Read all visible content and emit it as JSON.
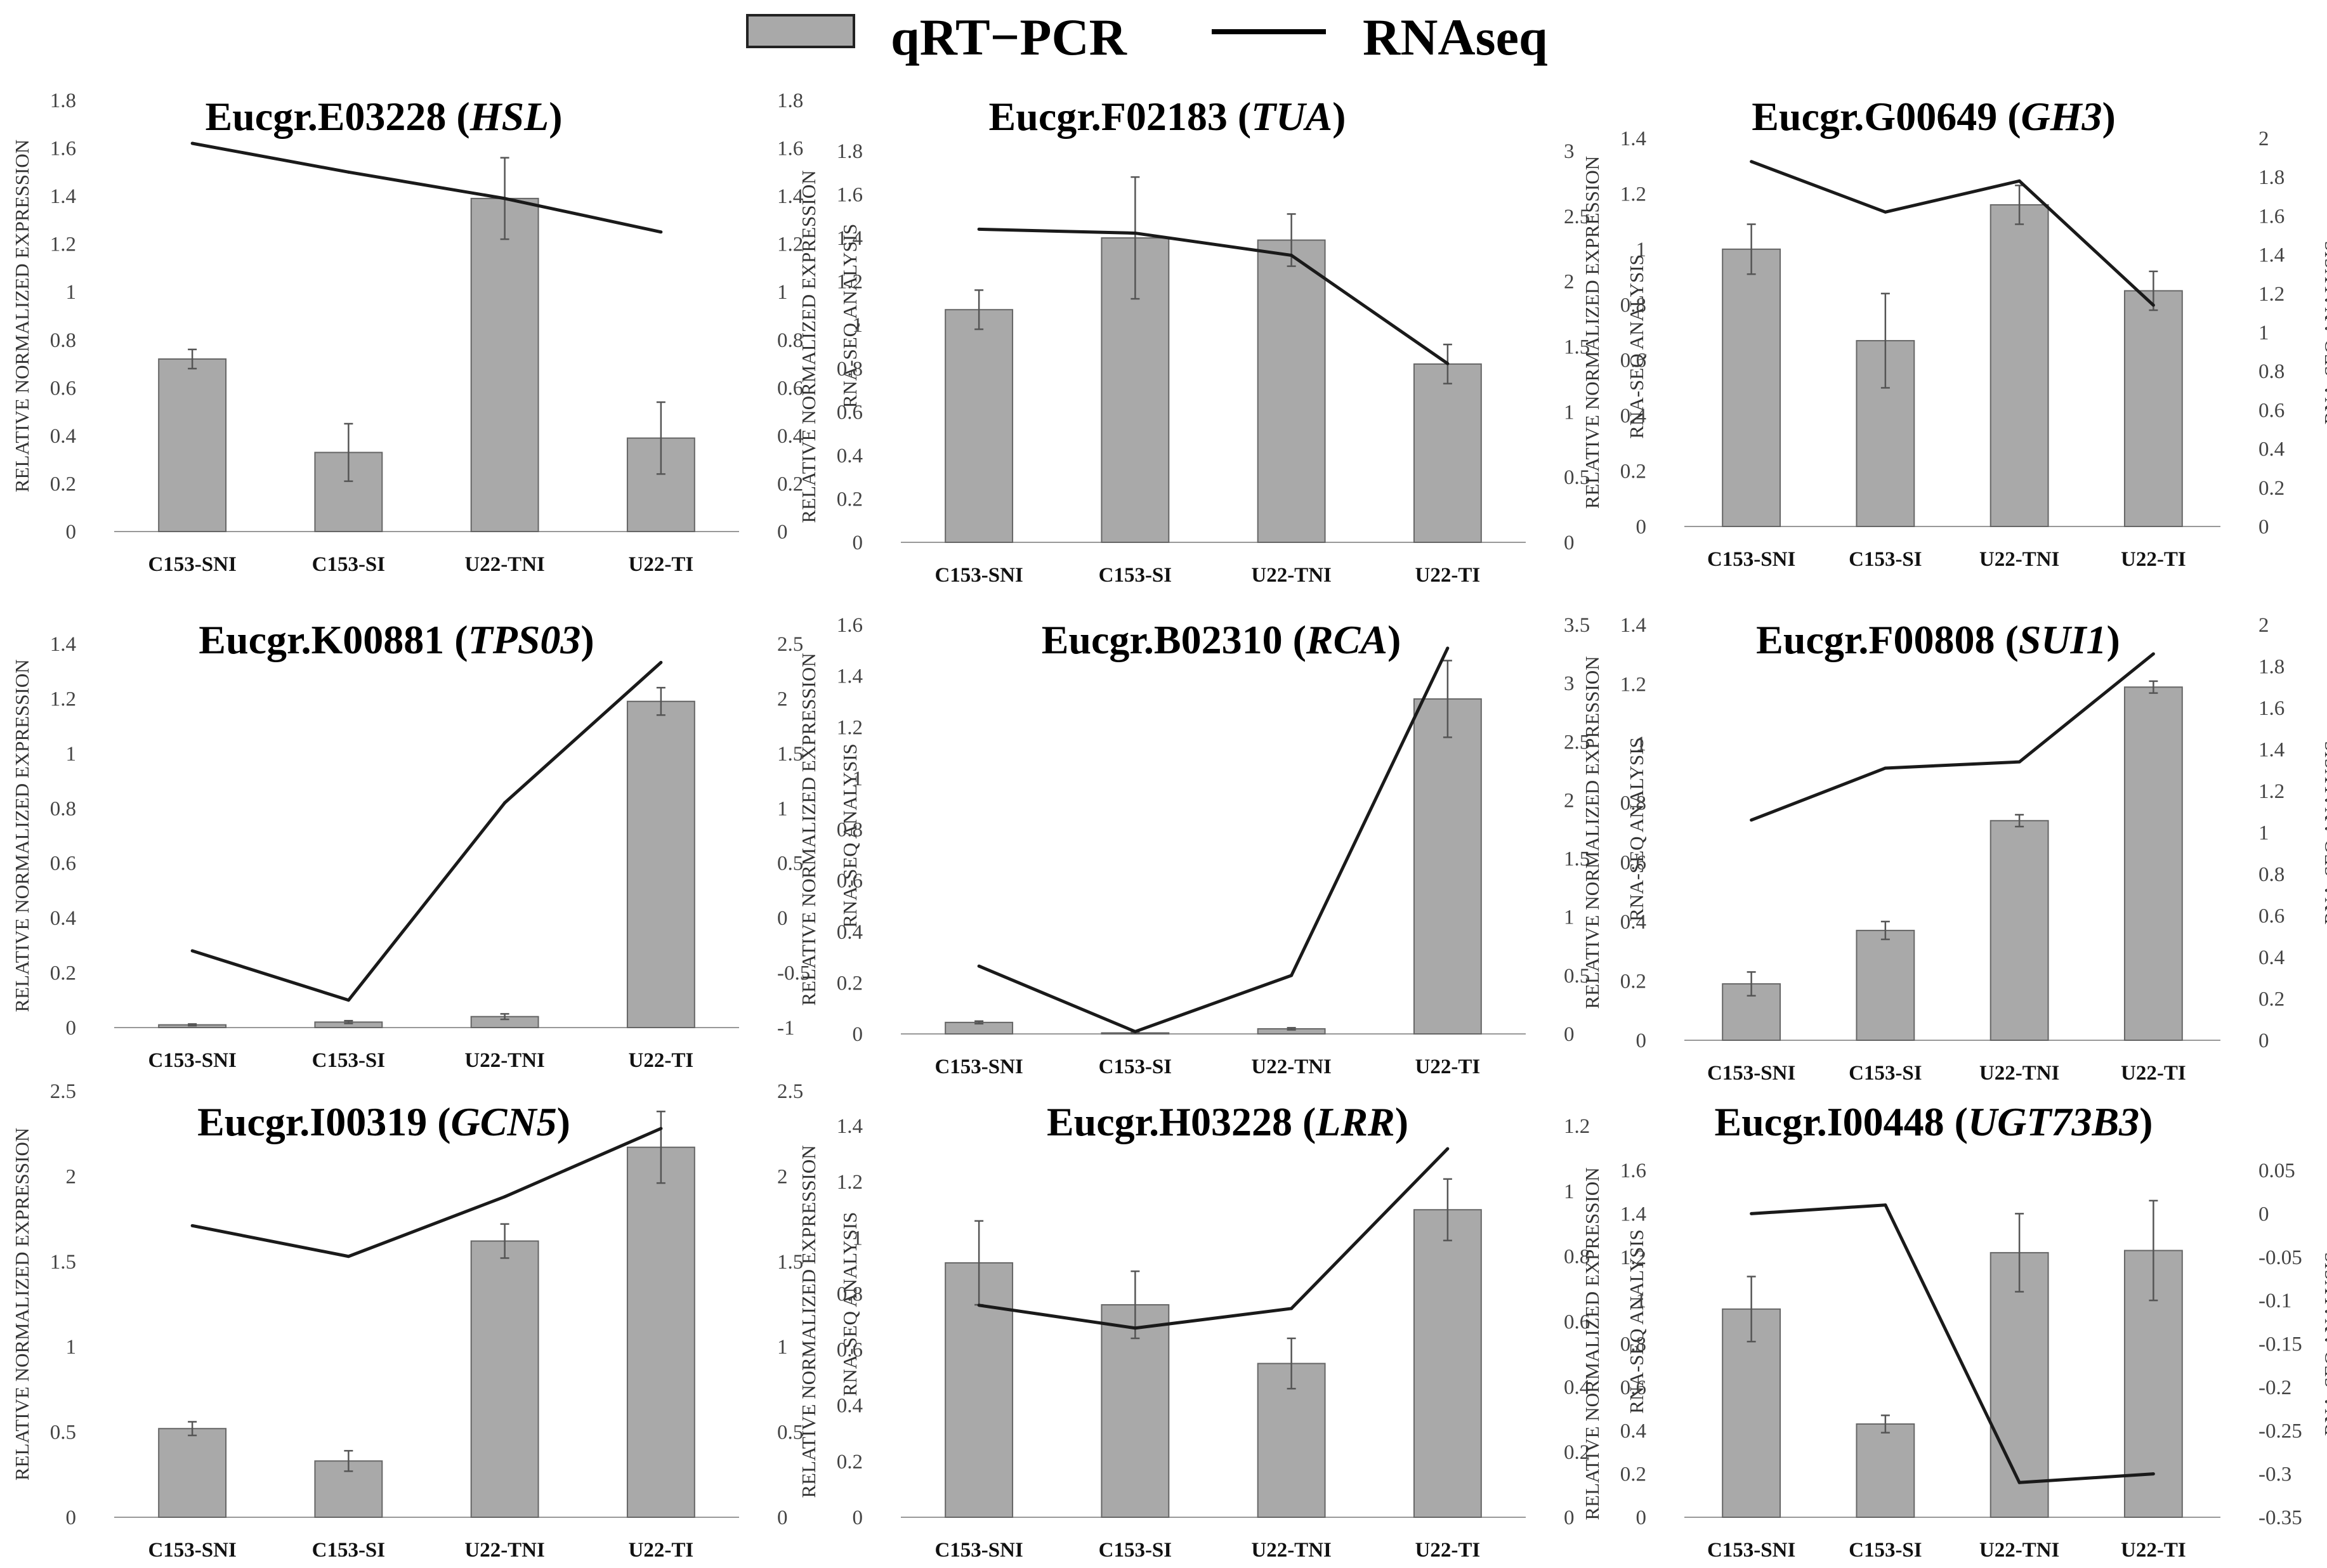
{
  "legend": {
    "bar_label": "qRT−PCR",
    "line_label": "RNAseq"
  },
  "colors": {
    "bar_fill": "#a9a9a9",
    "line": "#1a1a1a"
  },
  "chart_data": [
    {
      "type": "bar",
      "id": "hsl",
      "title_prefix": "Eucgr.E03228 (",
      "title_gene": "HSL",
      "title_suffix": ")",
      "categories": [
        "C153-SNI",
        "C153-SI",
        "U22-TNI",
        "U22-TI"
      ],
      "ylabel": "RELATIVE NORMALIZED EXPRESSION",
      "y2label": "RNA-SEQ ANALYSIS",
      "ylim": [
        0,
        1.8
      ],
      "yticks": [
        "0",
        "0.2",
        "0.4",
        "0.6",
        "0.8",
        "1",
        "1.2",
        "1.4",
        "1.6",
        "1.8"
      ],
      "y2lim": [
        0,
        1.8
      ],
      "y2ticks": [
        "0",
        "0.2",
        "0.4",
        "0.6",
        "0.8",
        "1",
        "1.2",
        "1.4",
        "1.6",
        "1.8"
      ],
      "series": [
        {
          "name": "qRT-PCR",
          "kind": "bar",
          "values": [
            0.72,
            0.33,
            1.39,
            0.39
          ],
          "errors": [
            0.04,
            0.12,
            0.17,
            0.15
          ]
        },
        {
          "name": "RNAseq",
          "kind": "line",
          "axis": "right",
          "values": [
            1.62,
            1.5,
            1.39,
            1.25
          ]
        }
      ]
    },
    {
      "type": "bar",
      "id": "tua",
      "title_prefix": "Eucgr.F02183 (",
      "title_gene": "TUA",
      "title_suffix": ")",
      "categories": [
        "C153-SNI",
        "C153-SI",
        "U22-TNI",
        "U22-TI"
      ],
      "ylabel": "RELATIVE NORMALIZED EXPRESSION",
      "y2label": "RNA-SEQ ANALYSIS",
      "ylim": [
        0,
        1.8
      ],
      "yticks": [
        "0",
        "0.2",
        "0.4",
        "0.6",
        "0.8",
        "1",
        "1.2",
        "1.4",
        "1.6",
        "1.8"
      ],
      "y2lim": [
        0,
        3
      ],
      "y2ticks": [
        "0",
        "0.5",
        "1",
        "1.5",
        "2",
        "2.5",
        "3"
      ],
      "series": [
        {
          "name": "qRT-PCR",
          "kind": "bar",
          "values": [
            1.07,
            1.4,
            1.39,
            0.82
          ],
          "errors": [
            0.09,
            0.28,
            0.12,
            0.09
          ]
        },
        {
          "name": "RNAseq",
          "kind": "line",
          "axis": "right",
          "values": [
            2.4,
            2.37,
            2.2,
            1.37
          ]
        }
      ]
    },
    {
      "type": "bar",
      "id": "gh3",
      "title_prefix": "Eucgr.G00649 (",
      "title_gene": "GH3",
      "title_suffix": ")",
      "categories": [
        "C153-SNI",
        "C153-SI",
        "U22-TNI",
        "U22-TI"
      ],
      "ylabel": "RELATIVE NORMALIZED EXPRESSION",
      "y2label": "RNA-SEQ ANALYSIS",
      "ylim": [
        0,
        1.4
      ],
      "yticks": [
        "0",
        "0.2",
        "0.4",
        "0.6",
        "0.8",
        "1",
        "1.2",
        "1.4"
      ],
      "y2lim": [
        0,
        2
      ],
      "y2ticks": [
        "0",
        "0.2",
        "0.4",
        "0.6",
        "0.8",
        "1",
        "1.2",
        "1.4",
        "1.6",
        "1.8",
        "2"
      ],
      "series": [
        {
          "name": "qRT-PCR",
          "kind": "bar",
          "values": [
            1.0,
            0.67,
            1.16,
            0.85
          ],
          "errors": [
            0.09,
            0.17,
            0.07,
            0.07
          ]
        },
        {
          "name": "RNAseq",
          "kind": "line",
          "axis": "right",
          "values": [
            1.88,
            1.62,
            1.78,
            1.14
          ]
        }
      ]
    },
    {
      "type": "bar",
      "id": "tps03",
      "title_prefix": "Eucgr.K00881 (",
      "title_gene": "TPS03",
      "title_suffix": ")",
      "categories": [
        "C153-SNI",
        "C153-SI",
        "U22-TNI",
        "U22-TI"
      ],
      "ylabel": "RELATIVE NORMALIZED EXPRESSION",
      "y2label": "RNA-SEQ ANALYSIS",
      "ylim": [
        0,
        1.4
      ],
      "yticks": [
        "0",
        "0.2",
        "0.4",
        "0.6",
        "0.8",
        "1",
        "1.2",
        "1.4"
      ],
      "y2lim": [
        -1,
        2.5
      ],
      "y2ticks": [
        "-1",
        "-0.5",
        "0",
        "0.5",
        "1",
        "1.5",
        "2",
        "2.5"
      ],
      "series": [
        {
          "name": "qRT-PCR",
          "kind": "bar",
          "values": [
            0.01,
            0.02,
            0.04,
            1.19
          ],
          "errors": [
            0.003,
            0.005,
            0.01,
            0.05
          ]
        },
        {
          "name": "RNAseq",
          "kind": "line",
          "axis": "right",
          "values": [
            -0.3,
            -0.75,
            1.05,
            2.33
          ]
        }
      ]
    },
    {
      "type": "bar",
      "id": "rca",
      "title_prefix": "Eucgr.B02310 (",
      "title_gene": "RCA",
      "title_suffix": ")",
      "categories": [
        "C153-SNI",
        "C153-SI",
        "U22-TNI",
        "U22-TI"
      ],
      "ylabel": "RELATIVE NORMALIZED EXPRESSION",
      "y2label": "RNA-SEQ ANALYSIS",
      "ylim": [
        0,
        1.6
      ],
      "yticks": [
        "0",
        "0.2",
        "0.4",
        "0.6",
        "0.8",
        "1",
        "1.2",
        "1.4",
        "1.6"
      ],
      "y2lim": [
        0,
        3.5
      ],
      "y2ticks": [
        "0",
        "0.5",
        "1",
        "1.5",
        "2",
        "2.5",
        "3",
        "3.5"
      ],
      "series": [
        {
          "name": "qRT-PCR",
          "kind": "bar",
          "values": [
            0.045,
            0.004,
            0.02,
            1.31
          ],
          "errors": [
            0.005,
            0.002,
            0.004,
            0.15
          ]
        },
        {
          "name": "RNAseq",
          "kind": "line",
          "axis": "right",
          "values": [
            0.58,
            0.02,
            0.5,
            3.3
          ]
        }
      ]
    },
    {
      "type": "bar",
      "id": "sui1",
      "title_prefix": "Eucgr.F00808 (",
      "title_gene": "SUI1",
      "title_suffix": ")",
      "categories": [
        "C153-SNI",
        "C153-SI",
        "U22-TNI",
        "U22-TI"
      ],
      "ylabel": "RELATIVE NORMALIZED EXPRESSION",
      "y2label": "RNA-SEQ ANALYSIS",
      "ylim": [
        0,
        1.4
      ],
      "yticks": [
        "0",
        "0.2",
        "0.4",
        "0.6",
        "0.8",
        "1",
        "1.2",
        "1.4"
      ],
      "y2lim": [
        0,
        2
      ],
      "y2ticks": [
        "0",
        "0.2",
        "0.4",
        "0.6",
        "0.8",
        "1",
        "1.2",
        "1.4",
        "1.6",
        "1.8",
        "2"
      ],
      "series": [
        {
          "name": "qRT-PCR",
          "kind": "bar",
          "values": [
            0.19,
            0.37,
            0.74,
            1.19
          ],
          "errors": [
            0.04,
            0.03,
            0.02,
            0.02
          ]
        },
        {
          "name": "RNAseq",
          "kind": "line",
          "axis": "right",
          "values": [
            1.06,
            1.31,
            1.34,
            1.86
          ]
        }
      ]
    },
    {
      "type": "bar",
      "id": "gcn5",
      "title_prefix": "Eucgr.I00319 (",
      "title_gene": "GCN5",
      "title_suffix": ")",
      "categories": [
        "C153-SNI",
        "C153-SI",
        "U22-TNI",
        "U22-TI"
      ],
      "ylabel": "RELATIVE NORMALIZED EXPRESSION",
      "y2label": "RNA-SEQ ANALYSIS",
      "ylim": [
        0,
        2.5
      ],
      "yticks": [
        "0",
        "0.5",
        "1",
        "1.5",
        "2",
        "2.5"
      ],
      "y2lim": [
        0,
        2.5
      ],
      "y2ticks": [
        "0",
        "0.5",
        "1",
        "1.5",
        "2",
        "2.5"
      ],
      "series": [
        {
          "name": "qRT-PCR",
          "kind": "bar",
          "values": [
            0.52,
            0.33,
            1.62,
            2.17
          ],
          "errors": [
            0.04,
            0.06,
            0.1,
            0.21
          ]
        },
        {
          "name": "RNAseq",
          "kind": "line",
          "axis": "right",
          "values": [
            1.71,
            1.53,
            1.88,
            2.28
          ]
        }
      ]
    },
    {
      "type": "bar",
      "id": "lrr",
      "title_prefix": "Eucgr.H03228 (",
      "title_gene": "LRR",
      "title_suffix": ")",
      "categories": [
        "C153-SNI",
        "C153-SI",
        "U22-TNI",
        "U22-TI"
      ],
      "ylabel": "RELATIVE NORMALIZED EXPRESSION",
      "y2label": "RNA-SEQ ANALYSIS",
      "ylim": [
        0,
        1.4
      ],
      "yticks": [
        "0",
        "0.2",
        "0.4",
        "0.6",
        "0.8",
        "1",
        "1.2",
        "1.4"
      ],
      "y2lim": [
        0,
        1.2
      ],
      "y2ticks": [
        "0",
        "0.2",
        "0.4",
        "0.6",
        "0.8",
        "1",
        "1.2"
      ],
      "series": [
        {
          "name": "qRT-PCR",
          "kind": "bar",
          "values": [
            0.91,
            0.76,
            0.55,
            1.1
          ],
          "errors": [
            0.15,
            0.12,
            0.09,
            0.11
          ]
        },
        {
          "name": "RNAseq",
          "kind": "line",
          "axis": "right",
          "values": [
            0.65,
            0.58,
            0.64,
            1.13
          ]
        }
      ]
    },
    {
      "type": "bar",
      "id": "ugt73b3",
      "title_prefix": "Eucgr.I00448 (",
      "title_gene": "UGT73B3",
      "title_suffix": ")",
      "categories": [
        "C153-SNI",
        "C153-SI",
        "U22-TNI",
        "U22-TI"
      ],
      "ylabel": "RELATIVE NORMALIZED EXPRESSION",
      "y2label": "RNA-SEQ ANALYSIS",
      "ylim": [
        0,
        1.6
      ],
      "yticks": [
        "0",
        "0.2",
        "0.4",
        "0.6",
        "0.8",
        "1",
        "1.2",
        "1.4",
        "1.6"
      ],
      "y2lim": [
        -0.35,
        0.05
      ],
      "y2ticks": [
        "-0.35",
        "-0.3",
        "-0.25",
        "-0.2",
        "-0.15",
        "-0.1",
        "-0.05",
        "0",
        "0.05"
      ],
      "series": [
        {
          "name": "qRT-PCR",
          "kind": "bar",
          "values": [
            0.96,
            0.43,
            1.22,
            1.23
          ],
          "errors": [
            0.15,
            0.04,
            0.18,
            0.23
          ]
        },
        {
          "name": "RNAseq",
          "kind": "line",
          "axis": "right",
          "values": [
            0.0,
            0.01,
            -0.31,
            -0.3
          ]
        }
      ]
    }
  ]
}
